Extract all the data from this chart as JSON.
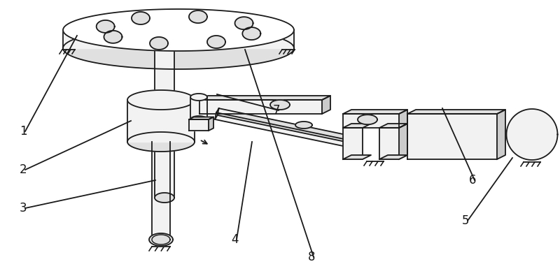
{
  "bg_color": "#ffffff",
  "line_color": "#1a1a1a",
  "fill_white": "#ffffff",
  "fill_light": "#f2f2f2",
  "fill_mid": "#e0e0e0",
  "fill_dark": "#cccccc",
  "font_size": 12,
  "lw": 1.3
}
